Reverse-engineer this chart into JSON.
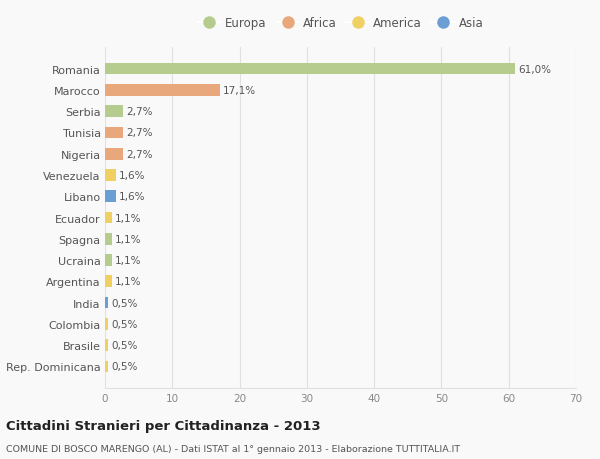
{
  "categories": [
    "Romania",
    "Marocco",
    "Serbia",
    "Tunisia",
    "Nigeria",
    "Venezuela",
    "Libano",
    "Ecuador",
    "Spagna",
    "Ucraina",
    "Argentina",
    "India",
    "Colombia",
    "Brasile",
    "Rep. Dominicana"
  ],
  "values": [
    61.0,
    17.1,
    2.7,
    2.7,
    2.7,
    1.6,
    1.6,
    1.1,
    1.1,
    1.1,
    1.1,
    0.5,
    0.5,
    0.5,
    0.5
  ],
  "labels": [
    "61,0%",
    "17,1%",
    "2,7%",
    "2,7%",
    "2,7%",
    "1,6%",
    "1,6%",
    "1,1%",
    "1,1%",
    "1,1%",
    "1,1%",
    "0,5%",
    "0,5%",
    "0,5%",
    "0,5%"
  ],
  "continents": [
    "Europa",
    "Africa",
    "Europa",
    "Africa",
    "Africa",
    "America",
    "Asia",
    "America",
    "Europa",
    "Europa",
    "America",
    "Asia",
    "America",
    "America",
    "America"
  ],
  "colors": {
    "Europa": "#b5cc8e",
    "Africa": "#e8a87c",
    "America": "#f0d060",
    "Asia": "#6b9fd4"
  },
  "legend_order": [
    "Europa",
    "Africa",
    "America",
    "Asia"
  ],
  "title": "Cittadini Stranieri per Cittadinanza - 2013",
  "subtitle": "COMUNE DI BOSCO MARENGO (AL) - Dati ISTAT al 1° gennaio 2013 - Elaborazione TUTTITALIA.IT",
  "xlim": [
    0,
    70
  ],
  "xticks": [
    0,
    10,
    20,
    30,
    40,
    50,
    60,
    70
  ],
  "background_color": "#f9f9f9",
  "grid_color": "#e0e0e0",
  "bar_height": 0.55
}
